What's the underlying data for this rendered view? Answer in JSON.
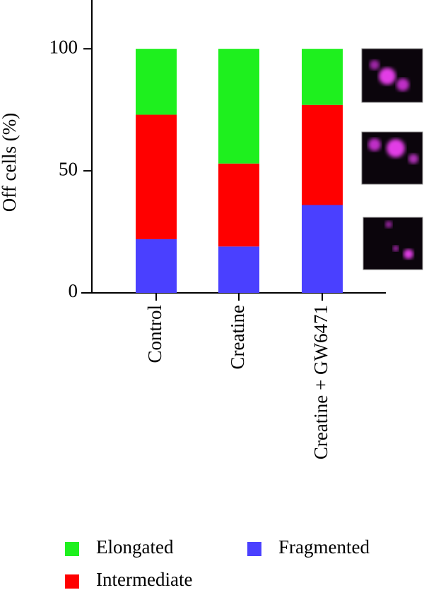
{
  "chart_data": {
    "type": "stacked_bar",
    "y_label": "Off cells (%)",
    "categories": [
      "Control",
      "Creatine",
      "Creatine + GW6471"
    ],
    "series": [
      {
        "name": "Fragmented",
        "color": "#4a40ff",
        "values": [
          22,
          19,
          36
        ]
      },
      {
        "name": "Intermediate",
        "color": "#ff0000",
        "values": [
          51,
          34,
          41
        ]
      },
      {
        "name": "Elongated",
        "color": "#1ef01e",
        "values": [
          27,
          47,
          23
        ]
      }
    ],
    "ylim": [
      0,
      120
    ],
    "yticks": [
      0,
      50,
      100
    ],
    "grid": false
  }
}
